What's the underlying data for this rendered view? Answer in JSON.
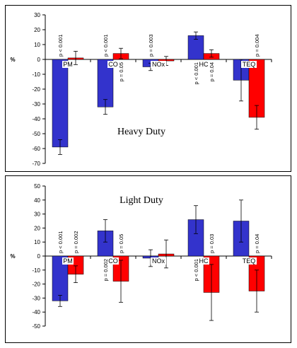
{
  "chart_data": [
    {
      "type": "bar",
      "title": "Heavy Duty",
      "xlabel": "",
      "ylabel": "%",
      "ylim": [
        -70,
        30
      ],
      "yticks": [
        30,
        20,
        10,
        0,
        -10,
        -20,
        -30,
        -40,
        -50,
        -60,
        -70
      ],
      "categories": [
        "PM",
        "CO",
        "NOx",
        "HC",
        "TEQ"
      ],
      "colors": [
        "#3333cc",
        "#ff0000"
      ],
      "series": [
        {
          "values": [
            -59,
            -32,
            -5,
            16,
            -14
          ],
          "errors": [
            5,
            5,
            2.5,
            2.5,
            14
          ]
        },
        {
          "values": [
            1,
            4,
            -1,
            4,
            -39
          ],
          "errors": [
            4.5,
            3.5,
            3,
            2.5,
            8
          ]
        }
      ],
      "p_values": [
        [
          "p < 0.001",
          ""
        ],
        [
          "p < 0.001",
          "p = 0.05"
        ],
        [
          "p = 0.003",
          ""
        ],
        [
          "p < 0.001",
          "p = 0.04"
        ],
        [
          "",
          "p = 0.004"
        ]
      ]
    },
    {
      "type": "bar",
      "title": "Light Duty",
      "xlabel": "",
      "ylabel": "%",
      "ylim": [
        -50,
        50
      ],
      "yticks": [
        50,
        40,
        30,
        20,
        10,
        0,
        -10,
        -20,
        -30,
        -40,
        -50
      ],
      "categories": [
        "PM",
        "CO",
        "NOx",
        "HC",
        "TEQ"
      ],
      "colors": [
        "#3333cc",
        "#ff0000"
      ],
      "series": [
        {
          "values": [
            -32,
            18,
            -1.5,
            26,
            25
          ],
          "errors": [
            4,
            8,
            6,
            10,
            15
          ]
        },
        {
          "values": [
            -13,
            -18,
            1.5,
            -26,
            -25
          ],
          "errors": [
            6,
            15,
            10,
            20,
            15
          ]
        }
      ],
      "p_values": [
        [
          "p < 0.001",
          "p = 0.002"
        ],
        [
          "p = 0.002",
          "p = 0.05"
        ],
        [
          "",
          ""
        ],
        [
          "p < 0.001",
          "p = 0.03"
        ],
        [
          "",
          "p = 0.04"
        ]
      ]
    }
  ]
}
